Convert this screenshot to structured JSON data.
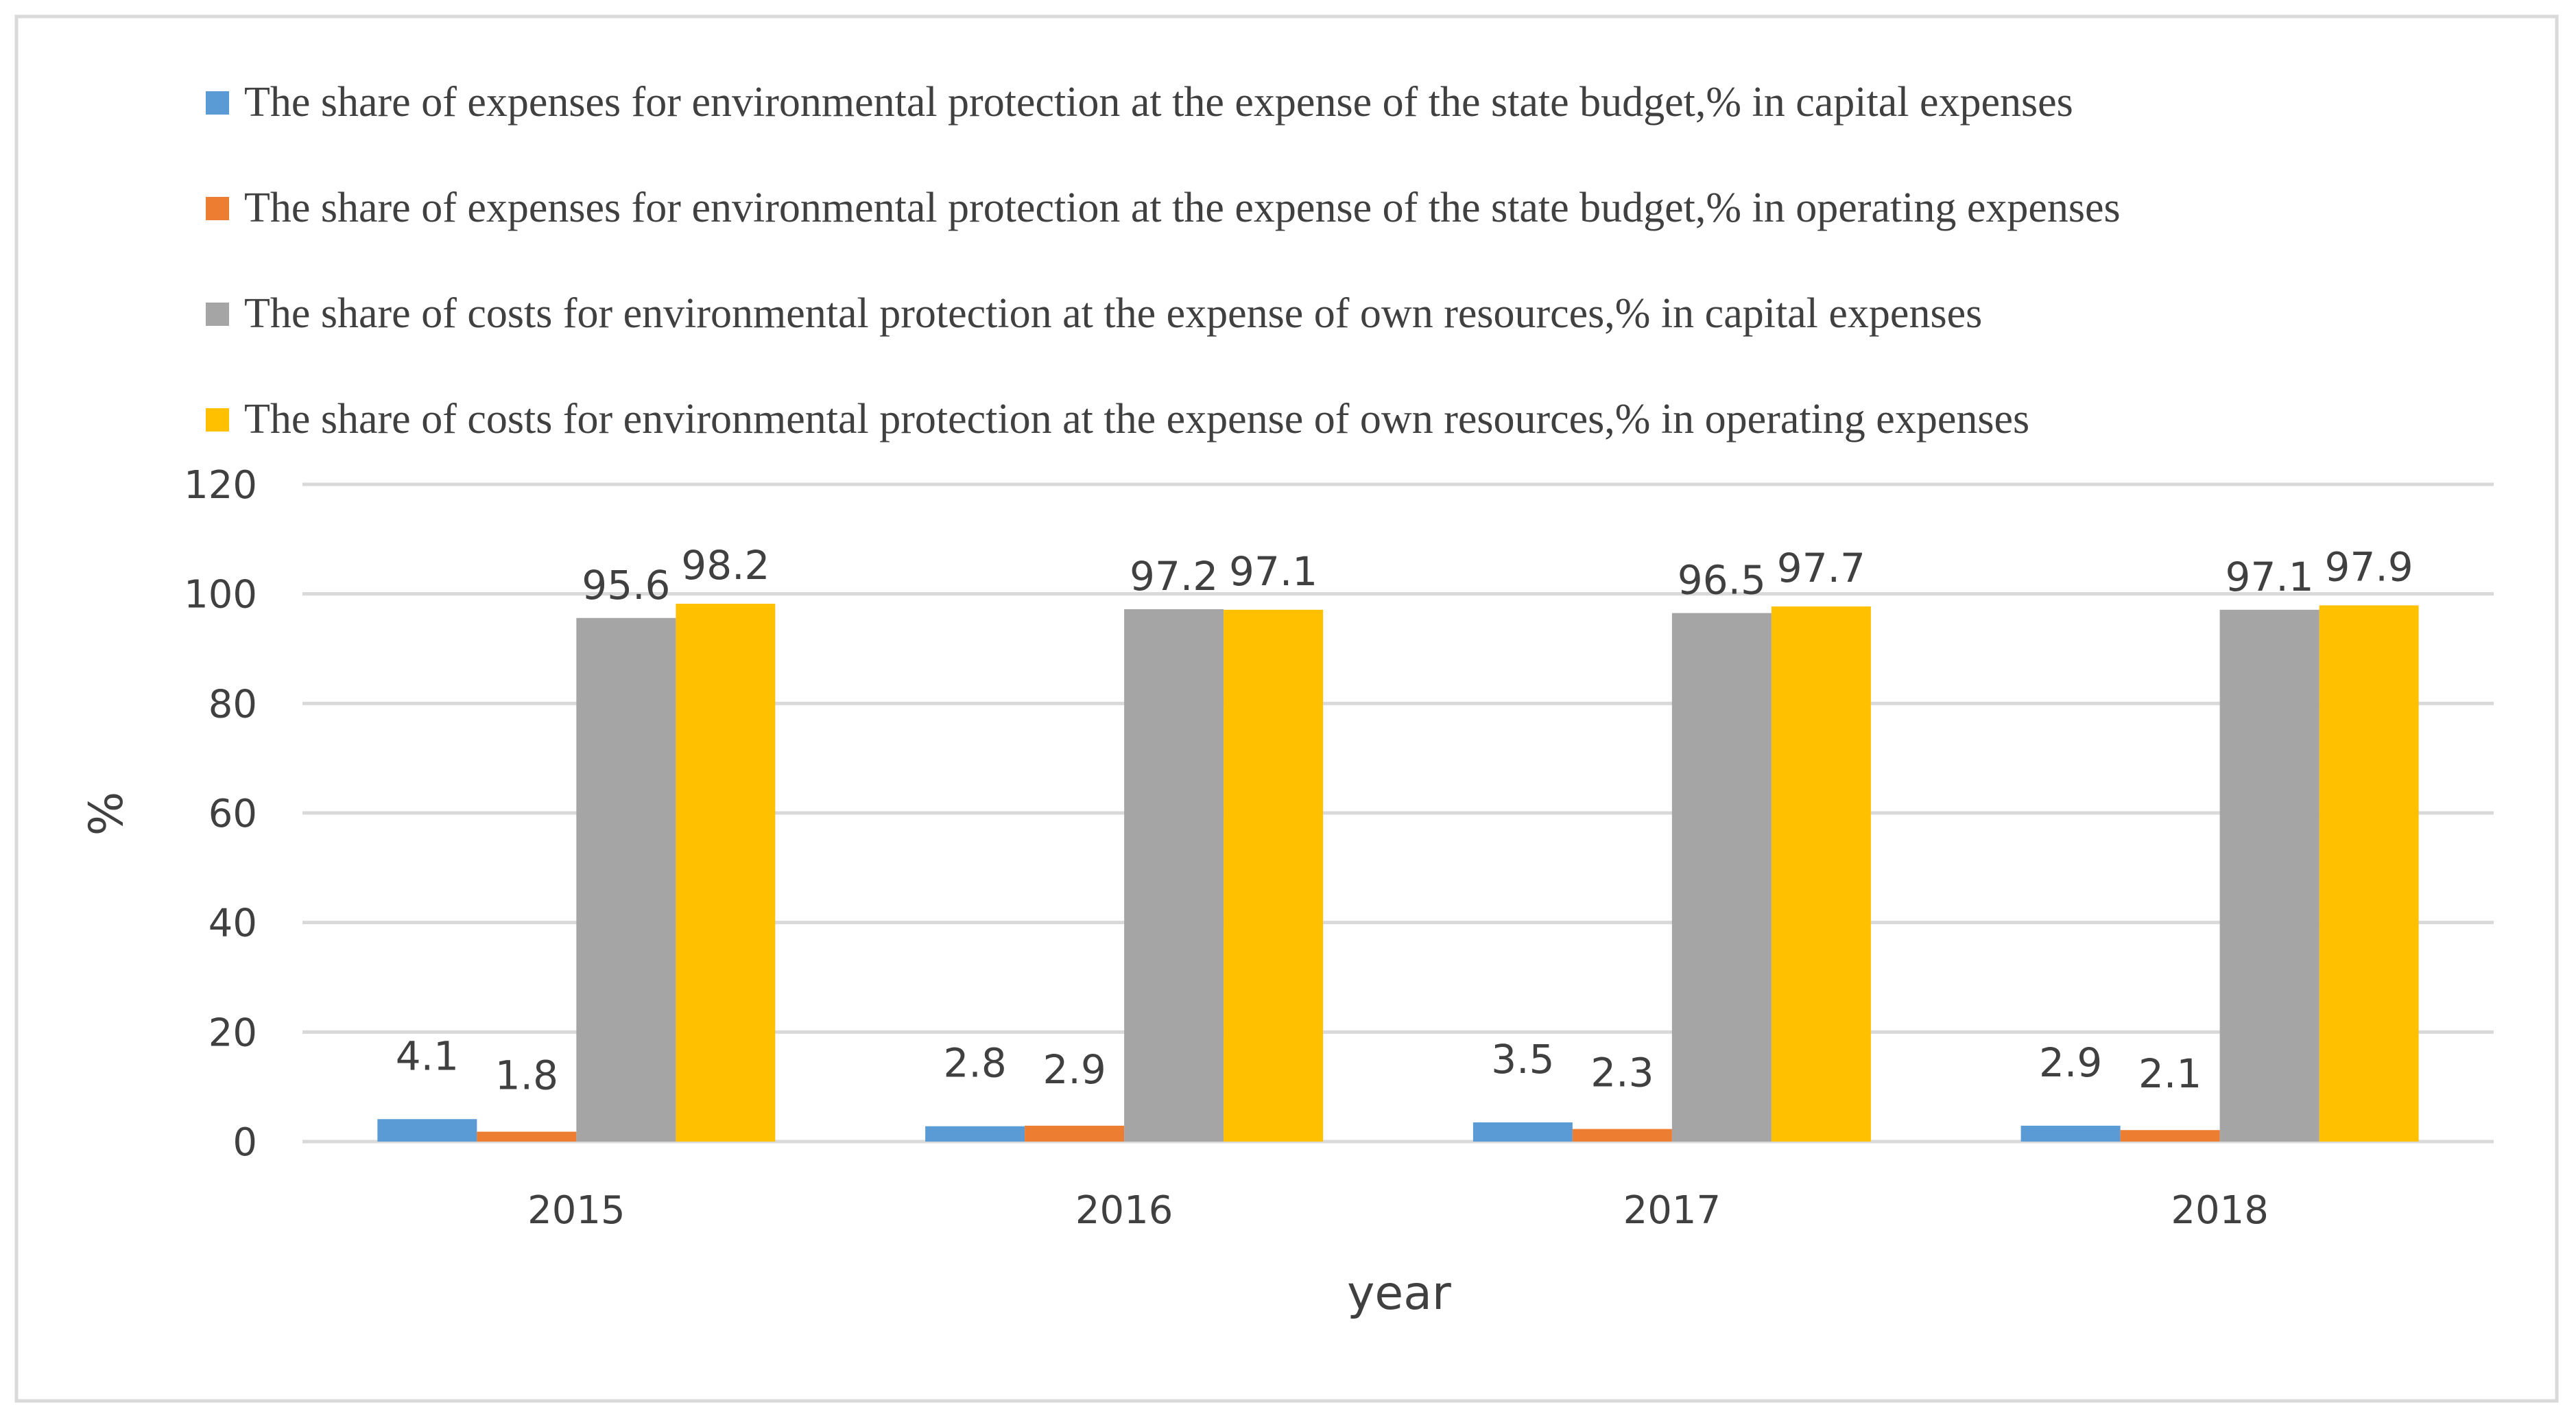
{
  "chart_data": {
    "type": "bar",
    "title": "",
    "xlabel": "year",
    "ylabel": "%",
    "ylim": [
      0,
      120
    ],
    "yticks": [
      0,
      20,
      40,
      60,
      80,
      100,
      120
    ],
    "grid": true,
    "legend_position": "top",
    "categories": [
      "2015",
      "2016",
      "2017",
      "2018"
    ],
    "series": [
      {
        "name": "The share of expenses for environmental protection at the expense of the state budget,% in capital expenses",
        "color": "#5B9BD5",
        "values": [
          4.1,
          2.8,
          3.5,
          2.9
        ]
      },
      {
        "name": "The share of expenses for environmental protection at the expense of the state budget,% in operating expenses",
        "color": "#ED7D31",
        "values": [
          1.8,
          2.9,
          2.3,
          2.1
        ]
      },
      {
        "name": "The share of costs for environmental protection at the expense of own resources,% in capital expenses",
        "color": "#A5A5A5",
        "values": [
          95.6,
          97.2,
          96.5,
          97.1
        ]
      },
      {
        "name": "The share of costs for environmental protection at the expense of own resources,% in operating expenses",
        "color": "#FFC000",
        "values": [
          98.2,
          97.1,
          97.7,
          97.9
        ]
      }
    ]
  }
}
